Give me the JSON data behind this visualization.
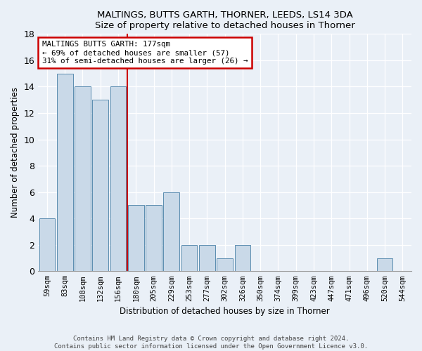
{
  "title": "MALTINGS, BUTTS GARTH, THORNER, LEEDS, LS14 3DA",
  "subtitle": "Size of property relative to detached houses in Thorner",
  "xlabel": "Distribution of detached houses by size in Thorner",
  "ylabel": "Number of detached properties",
  "bar_labels": [
    "59sqm",
    "83sqm",
    "108sqm",
    "132sqm",
    "156sqm",
    "180sqm",
    "205sqm",
    "229sqm",
    "253sqm",
    "277sqm",
    "302sqm",
    "326sqm",
    "350sqm",
    "374sqm",
    "399sqm",
    "423sqm",
    "447sqm",
    "471sqm",
    "496sqm",
    "520sqm",
    "544sqm"
  ],
  "bar_values": [
    4,
    15,
    14,
    13,
    14,
    5,
    5,
    6,
    2,
    2,
    1,
    2,
    0,
    0,
    0,
    0,
    0,
    0,
    0,
    1,
    0
  ],
  "bar_color": "#c9d9e8",
  "bar_edge_color": "#5b8db0",
  "annotation_title": "MALTINGS BUTTS GARTH: 177sqm",
  "annotation_line1": "← 69% of detached houses are smaller (57)",
  "annotation_line2": "31% of semi-detached houses are larger (26) →",
  "annotation_box_color": "#ffffff",
  "annotation_box_edge": "#cc0000",
  "vline_color": "#cc0000",
  "ylim": [
    0,
    18
  ],
  "yticks": [
    0,
    2,
    4,
    6,
    8,
    10,
    12,
    14,
    16,
    18
  ],
  "footer1": "Contains HM Land Registry data © Crown copyright and database right 2024.",
  "footer2": "Contains public sector information licensed under the Open Government Licence v3.0.",
  "background_color": "#eaf0f7",
  "plot_bg_color": "#eaf0f7"
}
